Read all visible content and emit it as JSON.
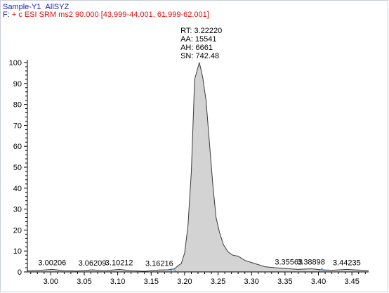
{
  "header": {
    "sample_label": "Sample-Y1",
    "sample_name": "AllSYZ",
    "filter_prefix": "F:",
    "filter_text": "+ c ESI SRM ms2 90.000 [43.999-44.001, 61.999-62.001]"
  },
  "colors": {
    "header_blue": "#1a1ab8",
    "header_red": "#e01010",
    "peak_fill": "#d3d3d3",
    "peak_stroke": "#3a3a3a",
    "baseline_marker": "#4a90d9"
  },
  "chart_data": {
    "type": "area",
    "title": "",
    "xlabel": "",
    "ylabel": "",
    "xlim": [
      2.965,
      3.475
    ],
    "ylim": [
      0,
      100
    ],
    "x_ticks": [
      "3.00",
      "3.05",
      "3.10",
      "3.15",
      "3.20",
      "3.25",
      "3.30",
      "3.35",
      "3.40",
      "3.45"
    ],
    "y_ticks": [
      "0",
      "10",
      "20",
      "30",
      "40",
      "50",
      "60",
      "70",
      "80",
      "90",
      "100"
    ],
    "series": [
      {
        "x": [
          2.965,
          2.985,
          3.002,
          3.02,
          3.04,
          3.062,
          3.08,
          3.102,
          3.12,
          3.14,
          3.162,
          3.175,
          3.185,
          3.19,
          3.195,
          3.2,
          3.205,
          3.21,
          3.215,
          3.222,
          3.227,
          3.232,
          3.237,
          3.242,
          3.247,
          3.252,
          3.258,
          3.265,
          3.272,
          3.28,
          3.29,
          3.3,
          3.31,
          3.32,
          3.335,
          3.356,
          3.37,
          3.389,
          3.405,
          3.42,
          3.442,
          3.46,
          3.475
        ],
        "values": [
          0.5,
          0.8,
          1.2,
          0.6,
          0.4,
          1.0,
          0.5,
          1.2,
          0.6,
          0.3,
          0.9,
          1.0,
          1.5,
          3.0,
          4.0,
          9.0,
          22.0,
          48.0,
          92.0,
          100.0,
          93.0,
          82.0,
          62.0,
          42.0,
          26.0,
          19.0,
          13.0,
          9.5,
          8.0,
          7.5,
          5.5,
          4.5,
          3.5,
          2.5,
          2.0,
          1.5,
          1.2,
          1.5,
          1.0,
          0.8,
          1.2,
          0.9,
          0.6
        ]
      }
    ],
    "annotations": [
      {
        "x": 3.00206,
        "y": 1.2,
        "label": "3.00206"
      },
      {
        "x": 3.06209,
        "y": 1.0,
        "label": "3.06209"
      },
      {
        "x": 3.10212,
        "y": 1.2,
        "label": "3.10212"
      },
      {
        "x": 3.16216,
        "y": 0.9,
        "label": "3.16216"
      },
      {
        "x": 3.35563,
        "y": 1.5,
        "label": "3.35563"
      },
      {
        "x": 3.38898,
        "y": 1.5,
        "label": "3.38898"
      },
      {
        "x": 3.44235,
        "y": 1.2,
        "label": "3.44235"
      }
    ],
    "peak_label": {
      "x": 3.2222,
      "y": 100,
      "lines": [
        "RT: 3.22220",
        "AA: 15541",
        "AH: 6661",
        "SN: 742.48"
      ]
    },
    "baseline_markers": [
      {
        "x": 3.183
      },
      {
        "x": 3.405
      }
    ],
    "grid": false,
    "legend": "none"
  }
}
